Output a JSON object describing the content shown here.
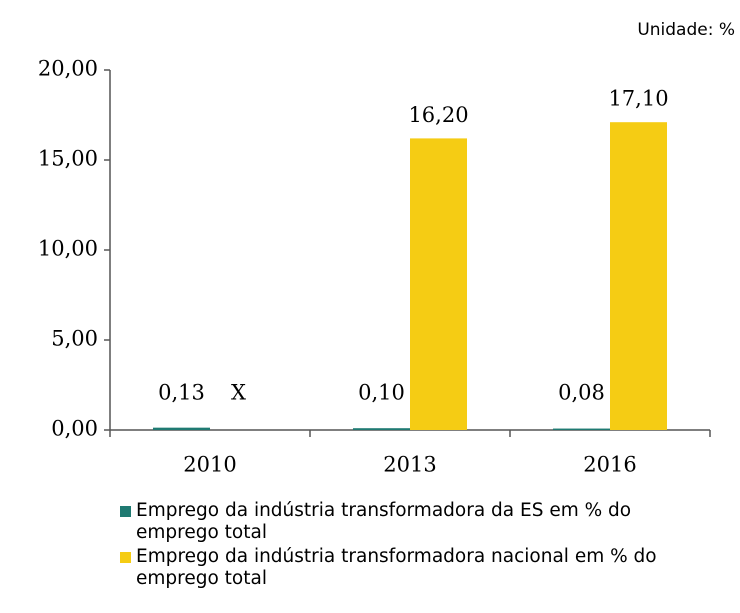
{
  "chart_data": {
    "type": "bar",
    "annotation": "Unidade: %",
    "categories": [
      "2010",
      "2013",
      "2016"
    ],
    "series": [
      {
        "name": "Emprego da indústria transformadora da ES em % do emprego total",
        "color": "#1f7a72",
        "values": [
          0.13,
          0.1,
          0.08
        ],
        "value_labels": [
          "0,13",
          "0,10",
          "0,08"
        ]
      },
      {
        "name": "Emprego da indústria transformadora nacional em % do emprego total",
        "color": "#f5cc14",
        "values": [
          null,
          16.2,
          17.1
        ],
        "value_labels": [
          "X",
          "16,20",
          "17,10"
        ]
      }
    ],
    "ylim": [
      0,
      20
    ],
    "yticks": [
      {
        "value": 0,
        "label": "0,00"
      },
      {
        "value": 5,
        "label": "5,00"
      },
      {
        "value": 10,
        "label": "10,00"
      },
      {
        "value": 15,
        "label": "15,00"
      },
      {
        "value": 20,
        "label": "20,00"
      }
    ],
    "grid": false
  }
}
